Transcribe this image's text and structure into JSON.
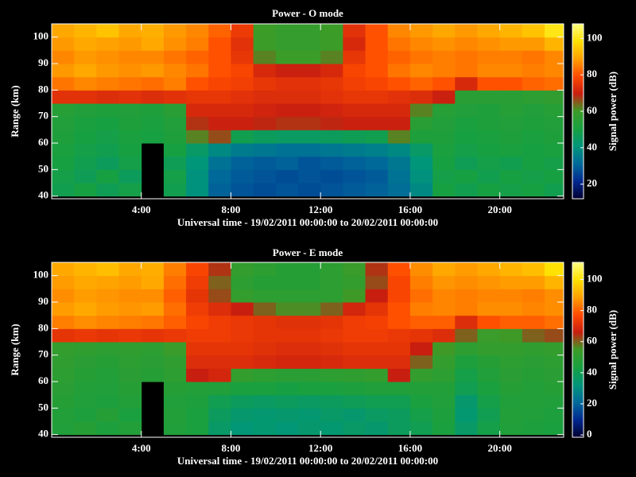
{
  "chart_data": [
    {
      "type": "heatmap",
      "title": "Power - O mode",
      "xlabel": "Universal time - 19/02/2011 00:00:00 to 20/02/2011 00:00:00",
      "ylabel": "Range (km)",
      "colorbar_label": "Signal power (dB)",
      "xlim": [
        0,
        22.85
      ],
      "ylim": [
        39,
        105
      ],
      "xticks": [
        {
          "value": 4,
          "label": "4:00"
        },
        {
          "value": 8,
          "label": "8:00"
        },
        {
          "value": 12,
          "label": "12:00"
        },
        {
          "value": 16,
          "label": "16:00"
        },
        {
          "value": 20,
          "label": "20:00"
        }
      ],
      "yticks": [
        40,
        50,
        60,
        70,
        80,
        90,
        100
      ],
      "x_bins": [
        0,
        1,
        2,
        3,
        4,
        5,
        6,
        7,
        8,
        9,
        10,
        11,
        12,
        13,
        14,
        15,
        16,
        17,
        18,
        19,
        20,
        21,
        22,
        22.85
      ],
      "y_bins": [
        40,
        45,
        50,
        55,
        60,
        65,
        70,
        75,
        80,
        85,
        90,
        95,
        100,
        105
      ],
      "clim": [
        12,
        108
      ],
      "cticks": [
        20,
        40,
        60,
        80,
        100
      ],
      "colormap": [
        "#000030",
        "#002890",
        "#006a9a",
        "#00967a",
        "#18a040",
        "#3c9c28",
        "#c81e10",
        "#ff4a00",
        "#ffa000",
        "#ffe000",
        "#ffff80"
      ],
      "values": [
        [
          48,
          50,
          47,
          49,
          null,
          48,
          40,
          30,
          28,
          27,
          28,
          27,
          28,
          29,
          30,
          32,
          38,
          50,
          48,
          50,
          49,
          50,
          48
        ],
        [
          49,
          47,
          50,
          46,
          null,
          49,
          40,
          31,
          29,
          28,
          27,
          28,
          27,
          28,
          29,
          33,
          40,
          49,
          50,
          48,
          50,
          49,
          50
        ],
        [
          50,
          48,
          46,
          49,
          null,
          47,
          41,
          33,
          30,
          29,
          30,
          28,
          29,
          30,
          31,
          34,
          41,
          50,
          47,
          49,
          48,
          50,
          49
        ],
        [
          51,
          49,
          48,
          50,
          null,
          50,
          44,
          38,
          35,
          34,
          33,
          33,
          34,
          35,
          36,
          38,
          44,
          51,
          49,
          50,
          51,
          50,
          51
        ],
        [
          52,
          50,
          49,
          51,
          50,
          52,
          62,
          66,
          48,
          46,
          45,
          45,
          46,
          47,
          48,
          62,
          52,
          52,
          50,
          51,
          52,
          51,
          52
        ],
        [
          53,
          51,
          50,
          52,
          51,
          53,
          68,
          70,
          70,
          69,
          68,
          68,
          69,
          70,
          70,
          70,
          55,
          53,
          51,
          52,
          53,
          52,
          53
        ],
        [
          54,
          53,
          52,
          53,
          52,
          55,
          72,
          72,
          72,
          71,
          70,
          70,
          71,
          72,
          72,
          72,
          62,
          54,
          53,
          52,
          54,
          53,
          54
        ],
        [
          74,
          74,
          73,
          74,
          73,
          74,
          75,
          75,
          74,
          73,
          73,
          73,
          74,
          75,
          75,
          74,
          73,
          70,
          55,
          55,
          55,
          56,
          57
        ],
        [
          84,
          86,
          85,
          84,
          83,
          85,
          80,
          78,
          77,
          75,
          74,
          74,
          75,
          77,
          78,
          80,
          82,
          80,
          72,
          80,
          80,
          82,
          83
        ],
        [
          88,
          90,
          88,
          87,
          88,
          86,
          84,
          80,
          78,
          72,
          70,
          70,
          72,
          78,
          80,
          84,
          86,
          85,
          84,
          86,
          86,
          85,
          86
        ],
        [
          86,
          88,
          87,
          86,
          86,
          84,
          82,
          80,
          75,
          62,
          60,
          60,
          62,
          75,
          80,
          82,
          84,
          85,
          84,
          85,
          85,
          84,
          86
        ],
        [
          88,
          90,
          89,
          88,
          90,
          87,
          85,
          80,
          74,
          60,
          58,
          58,
          60,
          72,
          80,
          84,
          86,
          87,
          86,
          87,
          88,
          88,
          92
        ],
        [
          90,
          92,
          94,
          90,
          91,
          88,
          86,
          82,
          76,
          60,
          58,
          58,
          60,
          74,
          80,
          86,
          88,
          90,
          88,
          90,
          92,
          94,
          100
        ]
      ]
    },
    {
      "type": "heatmap",
      "title": "Power - E mode",
      "xlabel": "Universal time - 19/02/2011 00:00:00 to 20/02/2011 00:00:00",
      "ylabel": "Range (km)",
      "colorbar_label": "Signal power (dB)",
      "xlim": [
        0,
        22.85
      ],
      "ylim": [
        39,
        105
      ],
      "xticks": [
        {
          "value": 4,
          "label": "4:00"
        },
        {
          "value": 8,
          "label": "8:00"
        },
        {
          "value": 12,
          "label": "12:00"
        },
        {
          "value": 16,
          "label": "16:00"
        },
        {
          "value": 20,
          "label": "20:00"
        }
      ],
      "yticks": [
        40,
        50,
        60,
        70,
        80,
        90,
        100
      ],
      "x_bins": [
        0,
        1,
        2,
        3,
        4,
        5,
        6,
        7,
        8,
        9,
        10,
        11,
        12,
        13,
        14,
        15,
        16,
        17,
        18,
        19,
        20,
        21,
        22,
        22.85
      ],
      "y_bins": [
        40,
        45,
        50,
        55,
        60,
        65,
        70,
        75,
        80,
        85,
        90,
        95,
        100,
        105
      ],
      "clim": [
        -1.5,
        111
      ],
      "cticks": [
        0,
        20,
        40,
        60,
        80,
        100
      ],
      "colormap": [
        "#000030",
        "#002890",
        "#006a9a",
        "#00967a",
        "#18a040",
        "#3c9c28",
        "#c81e10",
        "#ff4a00",
        "#ffa000",
        "#ffe000",
        "#ffff80"
      ],
      "values": [
        [
          46,
          48,
          45,
          47,
          null,
          46,
          44,
          36,
          33,
          34,
          33,
          35,
          34,
          36,
          35,
          38,
          40,
          44,
          36,
          42,
          46,
          45,
          44
        ],
        [
          47,
          45,
          48,
          44,
          null,
          47,
          44,
          38,
          35,
          34,
          35,
          34,
          36,
          35,
          37,
          38,
          42,
          45,
          34,
          40,
          47,
          46,
          45
        ],
        [
          48,
          46,
          45,
          47,
          null,
          46,
          45,
          40,
          38,
          37,
          38,
          37,
          38,
          39,
          40,
          40,
          44,
          46,
          35,
          42,
          46,
          47,
          46
        ],
        [
          49,
          47,
          46,
          48,
          null,
          48,
          47,
          46,
          44,
          44,
          43,
          44,
          44,
          45,
          46,
          46,
          47,
          47,
          40,
          44,
          48,
          47,
          48
        ],
        [
          50,
          48,
          47,
          49,
          48,
          50,
          66,
          68,
          52,
          50,
          49,
          49,
          50,
          51,
          52,
          66,
          52,
          50,
          42,
          46,
          49,
          48,
          49
        ],
        [
          51,
          49,
          48,
          50,
          49,
          51,
          70,
          70,
          70,
          69,
          68,
          68,
          69,
          70,
          70,
          70,
          60,
          52,
          45,
          48,
          50,
          49,
          50
        ],
        [
          52,
          51,
          50,
          51,
          50,
          54,
          72,
          72,
          72,
          71,
          70,
          70,
          71,
          72,
          72,
          72,
          66,
          55,
          50,
          52,
          52,
          51,
          52
        ],
        [
          72,
          73,
          72,
          73,
          72,
          73,
          74,
          74,
          73,
          72,
          72,
          72,
          73,
          74,
          74,
          73,
          72,
          70,
          60,
          54,
          55,
          60,
          62
        ],
        [
          84,
          86,
          85,
          84,
          83,
          80,
          76,
          74,
          73,
          72,
          71,
          71,
          72,
          74,
          75,
          78,
          80,
          80,
          70,
          78,
          80,
          80,
          82
        ],
        [
          88,
          90,
          88,
          87,
          88,
          82,
          74,
          70,
          66,
          60,
          56,
          56,
          60,
          68,
          72,
          78,
          84,
          85,
          84,
          86,
          86,
          85,
          86
        ],
        [
          86,
          88,
          87,
          86,
          86,
          80,
          72,
          62,
          52,
          50,
          50,
          50,
          50,
          55,
          66,
          76,
          82,
          85,
          84,
          85,
          85,
          84,
          86
        ],
        [
          88,
          90,
          89,
          88,
          90,
          82,
          74,
          60,
          50,
          48,
          48,
          48,
          50,
          52,
          62,
          76,
          84,
          87,
          86,
          87,
          88,
          88,
          92
        ],
        [
          90,
          92,
          94,
          90,
          91,
          84,
          76,
          64,
          52,
          50,
          48,
          48,
          50,
          54,
          64,
          78,
          86,
          90,
          88,
          90,
          92,
          94,
          100
        ]
      ]
    }
  ]
}
